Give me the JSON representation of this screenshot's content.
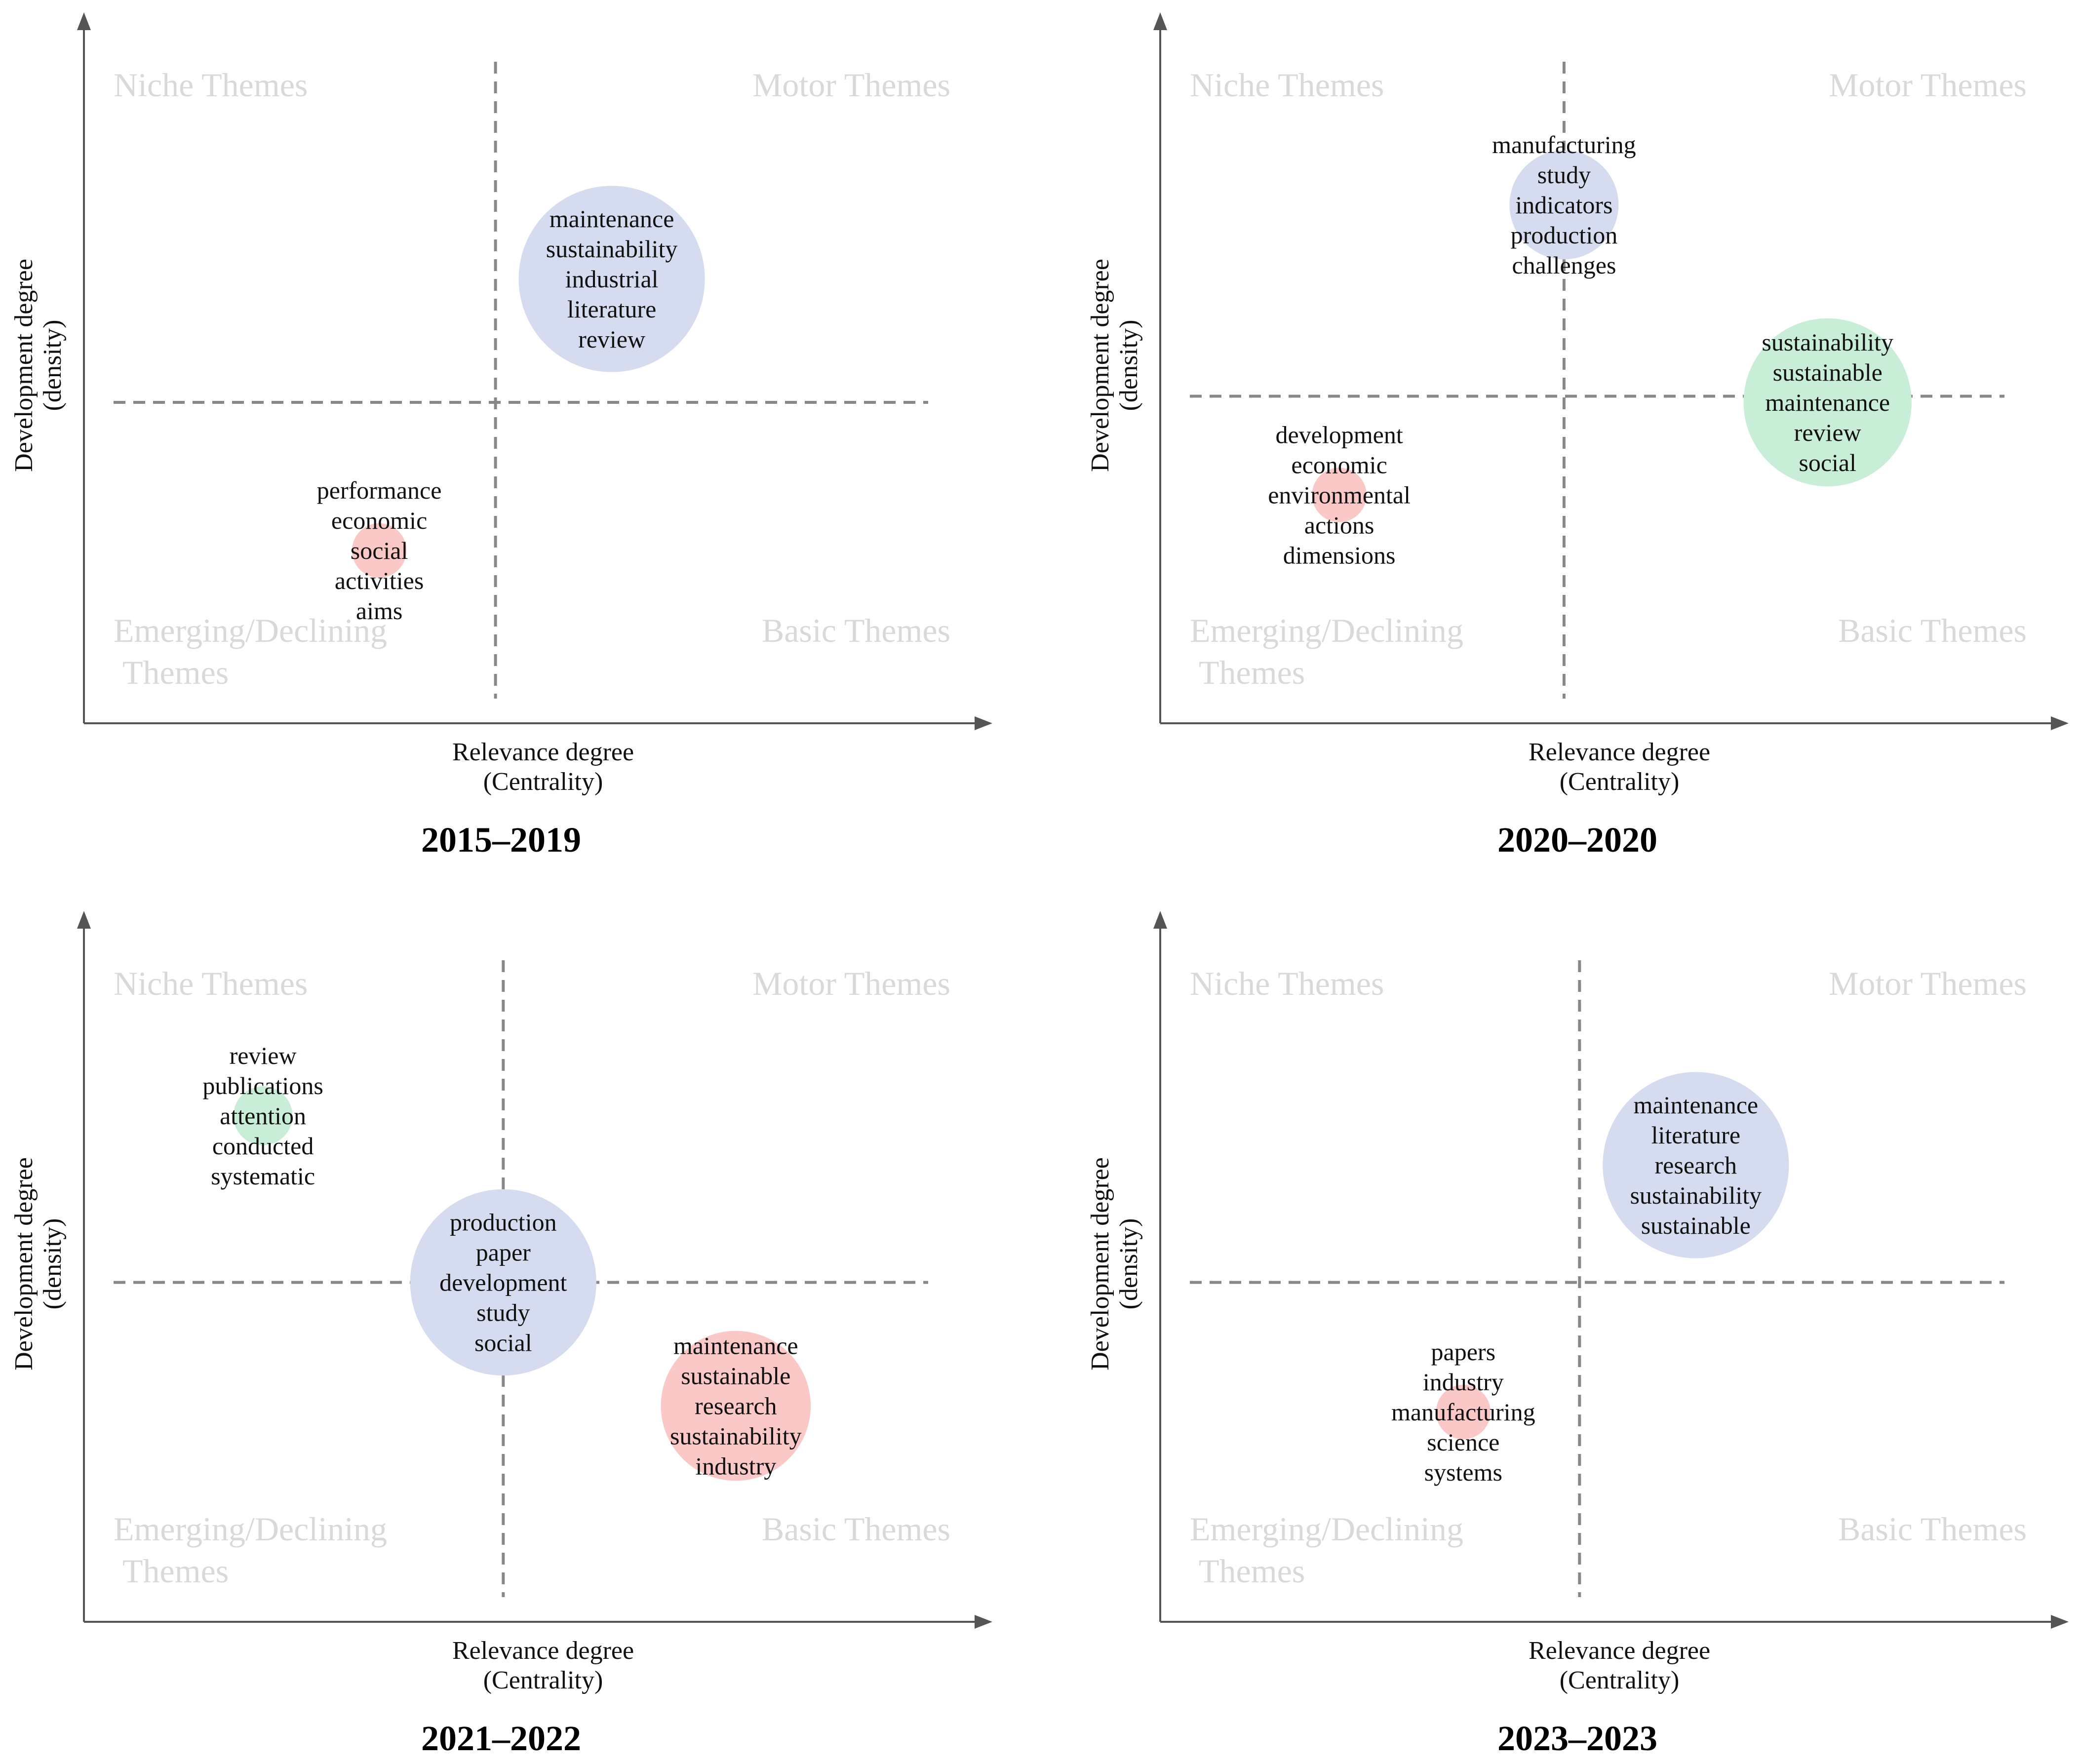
{
  "colors": {
    "blue": "#d5dcf0",
    "green": "#c9eed7",
    "red": "#fbc8c8",
    "quadrant_label": "#d9d9d9",
    "axis": "#555555",
    "guide": "#888888"
  },
  "chart_data": [
    {
      "type": "scatter",
      "title": "2015–2019",
      "xlabel_lines": [
        "Relevance degree",
        "(Centrality)"
      ],
      "ylabel_lines": [
        "Development degree",
        "(density)"
      ],
      "quadrants": {
        "top_left": "Niche Themes",
        "top_right": "Motor Themes",
        "bottom_left": [
          "Emerging/Declining",
          "Themes"
        ],
        "bottom_right": "Basic Themes"
      },
      "xlim": [
        0,
        100
      ],
      "ylim": [
        0,
        100
      ],
      "x_split": 48,
      "y_split": 48,
      "clusters": [
        {
          "x": 63,
          "y": 68,
          "size": 82,
          "color": "blue",
          "keywords": [
            "maintenance",
            "sustainability",
            "industrial",
            "literature",
            "review"
          ]
        },
        {
          "x": 33,
          "y": 24,
          "size": 24,
          "color": "red",
          "keywords": [
            "performance",
            "economic",
            "social",
            "activities",
            "aims"
          ]
        }
      ]
    },
    {
      "type": "scatter",
      "title": "2020–2020",
      "xlabel_lines": [
        "Relevance degree",
        "(Centrality)"
      ],
      "ylabel_lines": [
        "Development degree",
        "(density)"
      ],
      "quadrants": {
        "top_left": "Niche Themes",
        "top_right": "Motor Themes",
        "bottom_left": [
          "Emerging/Declining",
          "Themes"
        ],
        "bottom_right": "Basic Themes"
      },
      "xlim": [
        0,
        100
      ],
      "ylim": [
        0,
        100
      ],
      "x_split": 47,
      "y_split": 49,
      "clusters": [
        {
          "x": 47,
          "y": 80,
          "size": 48,
          "color": "blue",
          "keywords": [
            "manufacturing",
            "study",
            "indicators",
            "production",
            "challenges"
          ]
        },
        {
          "x": 81,
          "y": 48,
          "size": 74,
          "color": "green",
          "keywords": [
            "sustainability",
            "sustainable",
            "maintenance",
            "review",
            "social"
          ]
        },
        {
          "x": 18,
          "y": 33,
          "size": 24,
          "color": "red",
          "keywords": [
            "development",
            "economic",
            "environmental",
            "actions",
            "dimensions"
          ]
        }
      ]
    },
    {
      "type": "scatter",
      "title": "2021–2022",
      "xlabel_lines": [
        "Relevance degree",
        "(Centrality)"
      ],
      "ylabel_lines": [
        "Development degree",
        "(density)"
      ],
      "quadrants": {
        "top_left": "Niche Themes",
        "top_right": "Motor Themes",
        "bottom_left": [
          "Emerging/Declining",
          "Themes"
        ],
        "bottom_right": "Basic Themes"
      },
      "xlim": [
        0,
        100
      ],
      "ylim": [
        0,
        100
      ],
      "x_split": 49,
      "y_split": 51,
      "clusters": [
        {
          "x": 18,
          "y": 78,
          "size": 26,
          "color": "green",
          "keywords": [
            "review",
            "publications",
            "attention",
            "conducted",
            "systematic"
          ]
        },
        {
          "x": 49,
          "y": 51,
          "size": 82,
          "color": "blue",
          "keywords": [
            "production",
            "paper",
            "development",
            "study",
            "social"
          ]
        },
        {
          "x": 79,
          "y": 31,
          "size": 66,
          "color": "red",
          "keywords": [
            "maintenance",
            "sustainable",
            "research",
            "sustainability",
            "industry"
          ]
        }
      ]
    },
    {
      "type": "scatter",
      "title": "2023–2023",
      "xlabel_lines": [
        "Relevance degree",
        "(Centrality)"
      ],
      "ylabel_lines": [
        "Development degree",
        "(density)"
      ],
      "quadrants": {
        "top_left": "Niche Themes",
        "top_right": "Motor Themes",
        "bottom_left": [
          "Emerging/Declining",
          "Themes"
        ],
        "bottom_right": "Basic Themes"
      },
      "xlim": [
        0,
        100
      ],
      "ylim": [
        0,
        100
      ],
      "x_split": 49,
      "y_split": 51,
      "clusters": [
        {
          "x": 64,
          "y": 70,
          "size": 82,
          "color": "blue",
          "keywords": [
            "maintenance",
            "literature",
            "research",
            "sustainability",
            "sustainable"
          ]
        },
        {
          "x": 34,
          "y": 30,
          "size": 24,
          "color": "red",
          "keywords": [
            "papers",
            "industry",
            "manufacturing",
            "science",
            "systems"
          ]
        }
      ]
    }
  ]
}
